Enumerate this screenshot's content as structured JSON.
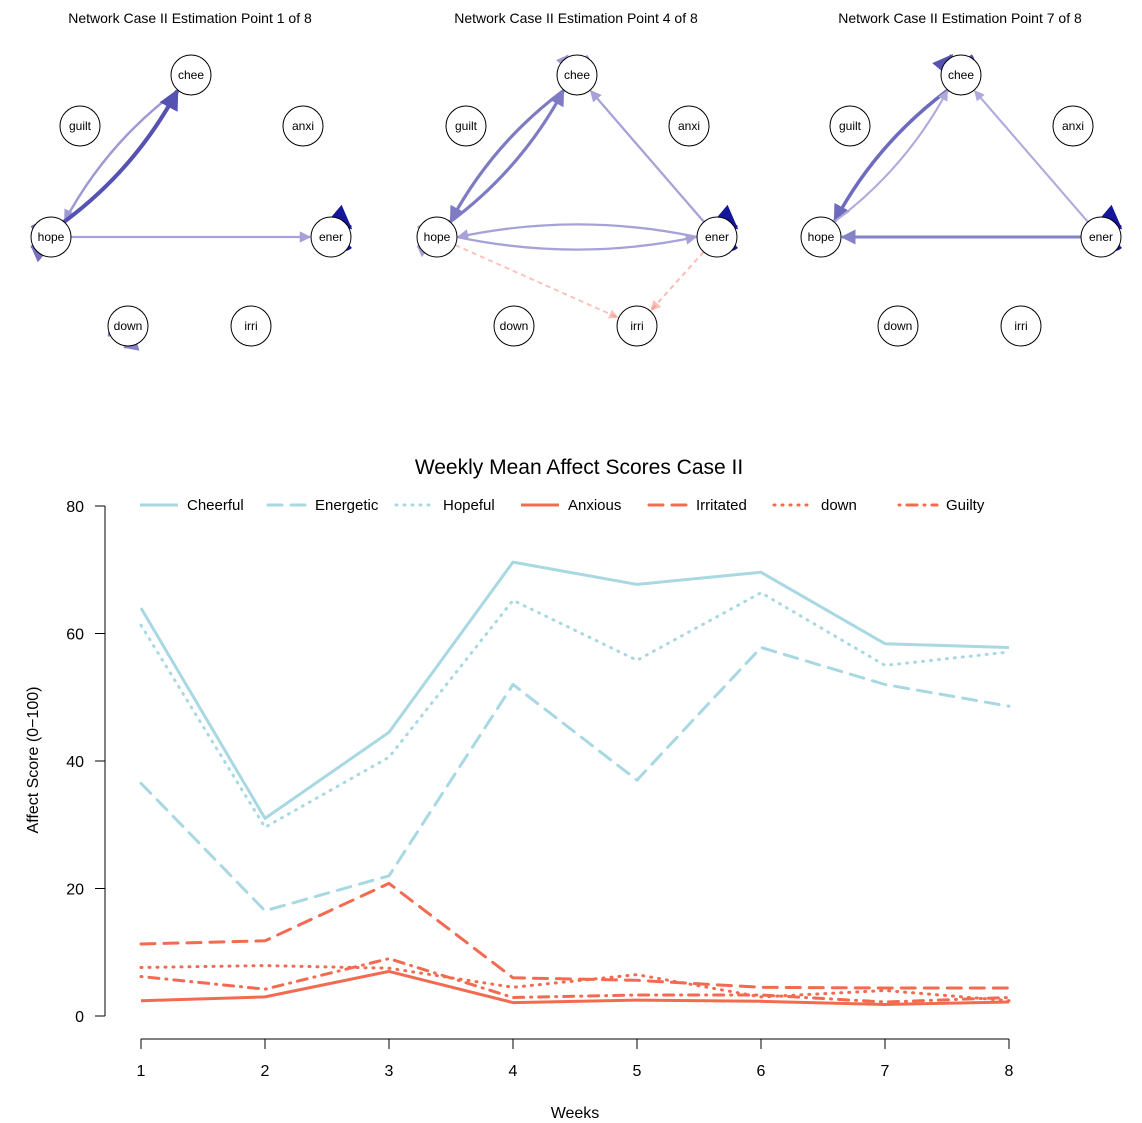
{
  "networks": [
    {
      "title": "Network Case II Estimation Point 1 of 8",
      "nodes": [
        "chee",
        "guilt",
        "anxi",
        "hope",
        "ener",
        "down",
        "irri"
      ],
      "edges": [
        {
          "from": "chee",
          "to": "hope",
          "weight": 0.35,
          "sign": "positive"
        },
        {
          "from": "hope",
          "to": "chee",
          "weight": 0.8,
          "sign": "positive"
        },
        {
          "from": "hope",
          "to": "ener",
          "weight": 0.3,
          "sign": "positive"
        },
        {
          "from": "hope",
          "to": "hope",
          "weight": 0.6,
          "sign": "positive"
        },
        {
          "from": "ener",
          "to": "ener",
          "weight": 1.0,
          "sign": "positive"
        },
        {
          "from": "down",
          "to": "down",
          "weight": 0.5,
          "sign": "positive"
        }
      ]
    },
    {
      "title": "Network Case II Estimation Point 4 of 8",
      "nodes": [
        "chee",
        "guilt",
        "anxi",
        "hope",
        "ener",
        "down",
        "irri"
      ],
      "edges": [
        {
          "from": "chee",
          "to": "chee",
          "weight": 0.35,
          "sign": "positive"
        },
        {
          "from": "chee",
          "to": "hope",
          "weight": 0.55,
          "sign": "positive"
        },
        {
          "from": "hope",
          "to": "chee",
          "weight": 0.55,
          "sign": "positive"
        },
        {
          "from": "ener",
          "to": "chee",
          "weight": 0.3,
          "sign": "positive"
        },
        {
          "from": "hope",
          "to": "ener",
          "weight": 0.3,
          "sign": "positive"
        },
        {
          "from": "ener",
          "to": "hope",
          "weight": 0.3,
          "sign": "positive"
        },
        {
          "from": "hope",
          "to": "hope",
          "weight": 0.3,
          "sign": "positive"
        },
        {
          "from": "ener",
          "to": "ener",
          "weight": 1.0,
          "sign": "positive"
        },
        {
          "from": "hope",
          "to": "irri",
          "weight": 0.2,
          "sign": "negative"
        },
        {
          "from": "ener",
          "to": "irri",
          "weight": 0.25,
          "sign": "negative"
        }
      ]
    },
    {
      "title": "Network Case II Estimation Point 7 of 8",
      "nodes": [
        "chee",
        "guilt",
        "anxi",
        "hope",
        "ener",
        "down",
        "irri"
      ],
      "edges": [
        {
          "from": "chee",
          "to": "chee",
          "weight": 0.8,
          "sign": "positive"
        },
        {
          "from": "chee",
          "to": "hope",
          "weight": 0.65,
          "sign": "positive"
        },
        {
          "from": "hope",
          "to": "chee",
          "weight": 0.25,
          "sign": "positive"
        },
        {
          "from": "ener",
          "to": "chee",
          "weight": 0.25,
          "sign": "positive"
        },
        {
          "from": "ener",
          "to": "hope",
          "weight": 0.5,
          "sign": "positive"
        },
        {
          "from": "ener",
          "to": "ener",
          "weight": 1.0,
          "sign": "positive"
        }
      ]
    }
  ],
  "chart_data": {
    "type": "line",
    "title": "Weekly Mean Affect Scores Case II",
    "xlabel": "Weeks",
    "ylabel": "Affect Score (0−100)",
    "x": [
      1,
      2,
      3,
      4,
      5,
      6,
      7,
      8
    ],
    "xticks": [
      "1",
      "2",
      "3",
      "4",
      "5",
      "6",
      "7",
      "8"
    ],
    "yticks": [
      "0",
      "20",
      "40",
      "60",
      "80"
    ],
    "ylim": [
      0,
      80
    ],
    "legend_position": "top",
    "series": [
      {
        "name": "Cheerful",
        "color": "#a8d8e2",
        "dash": "solid",
        "values": [
          64.0,
          31.0,
          44.5,
          71.2,
          67.7,
          69.6,
          58.4,
          57.8
        ]
      },
      {
        "name": "Energetic",
        "color": "#a8d8e2",
        "dash": "dashed",
        "values": [
          36.5,
          16.5,
          22.0,
          52.0,
          37.0,
          57.8,
          52.0,
          48.6
        ]
      },
      {
        "name": "Hopeful",
        "color": "#a8d8e2",
        "dash": "dotted",
        "values": [
          61.3,
          29.6,
          40.6,
          65.2,
          55.8,
          66.4,
          55.0,
          57.1
        ]
      },
      {
        "name": "Anxious",
        "color": "#f26b50",
        "dash": "solid",
        "values": [
          2.4,
          3.0,
          7.0,
          2.1,
          2.5,
          2.3,
          1.8,
          2.2
        ]
      },
      {
        "name": "Irritated",
        "color": "#f26b50",
        "dash": "dashed",
        "values": [
          11.3,
          11.8,
          20.8,
          6.0,
          5.6,
          4.5,
          4.4,
          4.4
        ]
      },
      {
        "name": "down",
        "color": "#f26b50",
        "dash": "dotted",
        "values": [
          7.6,
          7.9,
          7.5,
          4.5,
          6.5,
          3.0,
          4.0,
          2.4
        ]
      },
      {
        "name": "Guilty",
        "color": "#f26b50",
        "dash": "dotdash",
        "values": [
          6.2,
          4.2,
          9.0,
          2.9,
          3.3,
          3.3,
          2.2,
          2.9
        ]
      }
    ]
  }
}
